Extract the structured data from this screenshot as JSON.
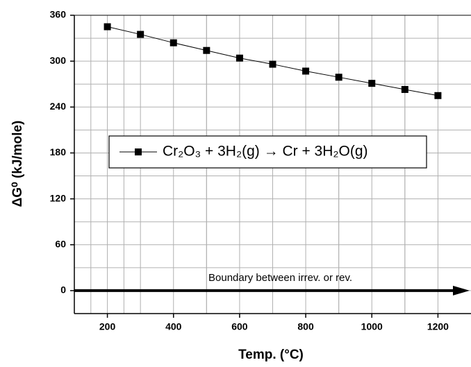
{
  "chart_data": {
    "type": "line",
    "x_label": "Temp. (°C)",
    "y_label": "ΔG⁰ (kJ/mole)",
    "annotation": "Boundary between irrev. or rev.",
    "x": [
      200,
      300,
      400,
      500,
      600,
      700,
      800,
      900,
      1000,
      1100,
      1200
    ],
    "series": [
      {
        "name": "Cr₂O₃ + 3H₂(g) → Cr + 3H₂O(g)",
        "color": "#000000",
        "values": [
          345,
          335,
          324,
          314,
          304,
          296,
          287,
          279,
          271,
          263,
          255
        ]
      }
    ],
    "xlim": [
      100,
      1300
    ],
    "xticks": [
      200,
      400,
      600,
      800,
      1000,
      1200
    ],
    "ylim": [
      -30,
      360
    ],
    "yticks": [
      0,
      60,
      120,
      180,
      240,
      300,
      360
    ],
    "grid": true,
    "legend": "center"
  }
}
